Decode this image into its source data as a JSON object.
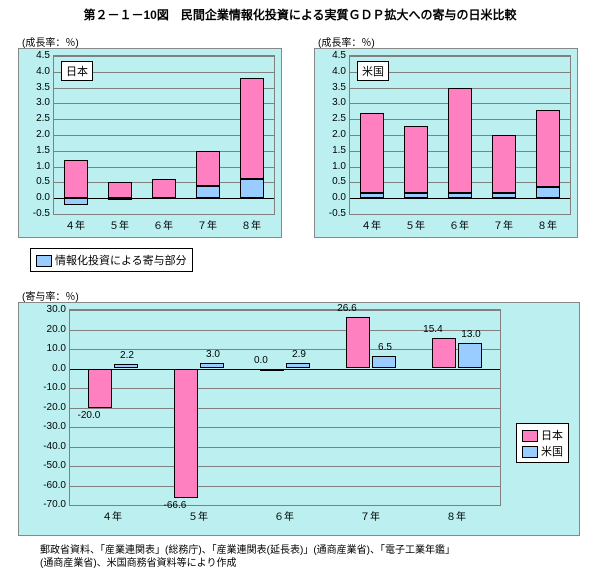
{
  "title": "第２－１－10図　民間企業情報化投資による実質ＧＤＰ拡大への寄与の日米比較",
  "colors": {
    "panel_bg": "#bcf0f0",
    "pink": "#ff80c0",
    "blue": "#99ccff",
    "grid": "#808080",
    "border": "#000000"
  },
  "chart_left": {
    "type": "bar",
    "axis_title": "(成長率：％)",
    "title_box": "日本",
    "ylim": [
      -0.5,
      4.5
    ],
    "yticks": [
      -0.5,
      0.0,
      0.5,
      1.0,
      1.5,
      2.0,
      2.5,
      3.0,
      3.5,
      4.0,
      4.5
    ],
    "categories": [
      "４年",
      "５年",
      "６年",
      "７年",
      "８年"
    ],
    "pink_values": [
      1.2,
      0.5,
      0.6,
      1.5,
      3.8
    ],
    "pink_bases": [
      -0.2,
      -0.05,
      0.0,
      0.4,
      0.6
    ],
    "blue_values": [
      -0.2,
      -0.05,
      0.0,
      0.4,
      0.6
    ]
  },
  "chart_right": {
    "type": "bar",
    "axis_title": "(成長率：％)",
    "title_box": "米国",
    "ylim": [
      -0.5,
      4.5
    ],
    "yticks": [
      -0.5,
      0.0,
      0.5,
      1.0,
      1.5,
      2.0,
      2.5,
      3.0,
      3.5,
      4.0,
      4.5
    ],
    "categories": [
      "４年",
      "５年",
      "６年",
      "７年",
      "８年"
    ],
    "pink_values": [
      2.7,
      2.3,
      3.5,
      2.0,
      2.8
    ],
    "pink_bases": [
      0.15,
      0.15,
      0.15,
      0.15,
      0.35
    ],
    "blue_values": [
      0.15,
      0.15,
      0.15,
      0.15,
      0.35
    ]
  },
  "legend_top": {
    "label": "情報化投資による寄与部分",
    "swatch": "#99ccff"
  },
  "chart_bottom": {
    "type": "grouped-bar",
    "axis_title": "(寄与率：％)",
    "ylim": [
      -70,
      30
    ],
    "yticks": [
      -70.0,
      -60.0,
      -50.0,
      -40.0,
      -30.0,
      -20.0,
      -10.0,
      0.0,
      10.0,
      20.0,
      30.0
    ],
    "categories": [
      "４年",
      "５年",
      "６年",
      "７年",
      "８年"
    ],
    "series": [
      {
        "name": "日本",
        "color": "#ff80c0",
        "values": [
          -20.0,
          -66.6,
          0.0,
          26.6,
          15.4
        ]
      },
      {
        "name": "米国",
        "color": "#99ccff",
        "values": [
          2.2,
          3.0,
          2.9,
          6.5,
          13.0
        ]
      }
    ],
    "data_labels": {
      "jp": [
        "-20.0",
        "-66.6",
        "0.0",
        "26.6",
        "15.4"
      ],
      "us": [
        "2.2",
        "3.0",
        "2.9",
        "6.5",
        "13.0"
      ]
    },
    "legend": {
      "jp": "日本",
      "us": "米国"
    }
  },
  "footnote": "郵政省資料、「産業連関表」(総務庁)、「産業連関表(延長表)」(通商産業省)、「電子工業年鑑」\n(通商産業省)、米国商務省資料等により作成"
}
